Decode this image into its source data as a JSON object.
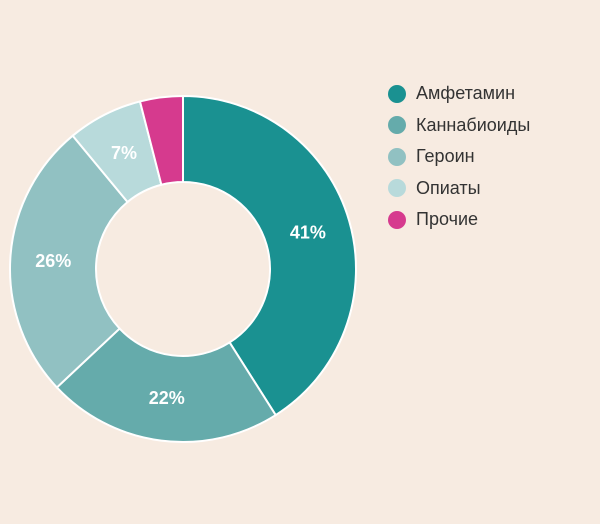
{
  "chart_data": {
    "type": "pie",
    "donut": true,
    "title": "",
    "legend_position": "right",
    "categories": [
      "Амфетамин",
      "Каннабиоиды",
      "Героин",
      "Опиаты",
      "Прочие"
    ],
    "values": [
      41,
      22,
      26,
      7,
      4
    ],
    "labels": [
      "41%",
      "22%",
      "26%",
      "7%",
      ""
    ],
    "colors": [
      "#1a9191",
      "#65abab",
      "#91c1c2",
      "#b8dadb",
      "#d63a8e"
    ],
    "label_colors": [
      "#ffffff",
      "#ffffff",
      "#ffffff",
      "#ffffff",
      "#ffffff"
    ]
  }
}
